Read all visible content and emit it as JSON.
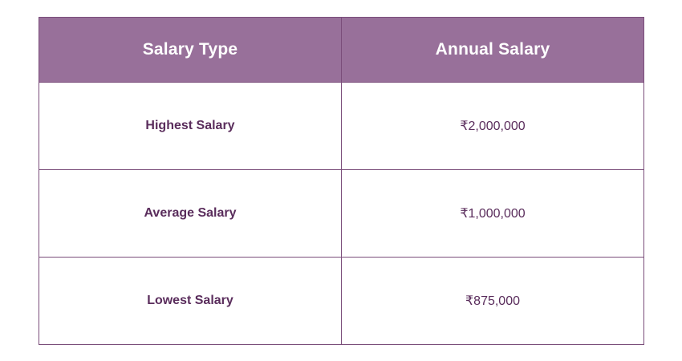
{
  "table": {
    "headers": [
      "Salary Type",
      "Annual Salary"
    ],
    "rows": [
      {
        "type": "Highest Salary",
        "amount": "₹2,000,000"
      },
      {
        "type": "Average Salary",
        "amount": "₹1,000,000"
      },
      {
        "type": "Lowest Salary",
        "amount": "₹875,000"
      }
    ]
  },
  "colors": {
    "header_background": "#98709a",
    "header_text": "#ffffff",
    "border": "#7a4d7a",
    "body_text": "#5a2d5c"
  }
}
